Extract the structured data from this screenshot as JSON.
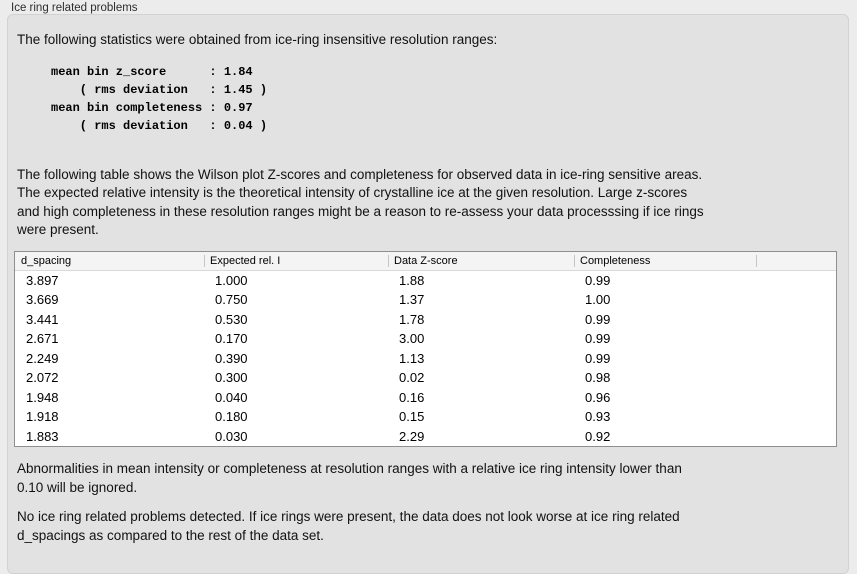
{
  "group": {
    "title": "Ice ring related problems"
  },
  "intro_text": "The following statistics were obtained from ice-ring insensitive resolution ranges:",
  "stats_block": "mean bin z_score      : 1.84\n    ( rms deviation   : 1.45 )\nmean bin completeness : 0.97\n    ( rms deviation   : 0.04 )",
  "stats": {
    "mean_bin_z_score": "1.84",
    "z_score_rms_deviation": "1.45",
    "mean_bin_completeness": "0.97",
    "completeness_rms_deviation": "0.04"
  },
  "table_intro": "The following table shows the Wilson plot Z-scores and completeness for observed data in ice-ring sensitive areas.\nThe expected relative intensity is the theoretical intensity of crystalline ice at the given resolution. Large z-scores\nand high completeness in these resolution ranges might be a reason to re-assess your data processsing if ice rings\nwere present.",
  "table": {
    "columns": [
      "d_spacing",
      "Expected rel. I",
      "Data Z-score",
      "Completeness"
    ],
    "rows": [
      [
        "3.897",
        "1.000",
        "1.88",
        "0.99"
      ],
      [
        "3.669",
        "0.750",
        "1.37",
        "1.00"
      ],
      [
        "3.441",
        "0.530",
        "1.78",
        "0.99"
      ],
      [
        "2.671",
        "0.170",
        "3.00",
        "0.99"
      ],
      [
        "2.249",
        "0.390",
        "1.13",
        "0.99"
      ],
      [
        "2.072",
        "0.300",
        "0.02",
        "0.98"
      ],
      [
        "1.948",
        "0.040",
        "0.16",
        "0.96"
      ],
      [
        "1.918",
        "0.180",
        "0.15",
        "0.93"
      ],
      [
        "1.883",
        "0.030",
        "2.29",
        "0.92"
      ]
    ]
  },
  "note_text": "Abnormalities in mean intensity or completeness at resolution ranges with a relative ice ring intensity lower than\n0.10 will be ignored.",
  "conclusion_text": "No ice ring related problems detected. If ice rings were present, the data does not look worse at ice ring related\nd_spacings as compared to the rest of the data set.",
  "colors": {
    "page_background": "#ececec",
    "panel_background": "#e2e2e2",
    "panel_border": "#d2d2d2",
    "table_border": "#8f8f8f",
    "table_header_background": "#f4f4f4",
    "text": "#111111"
  }
}
